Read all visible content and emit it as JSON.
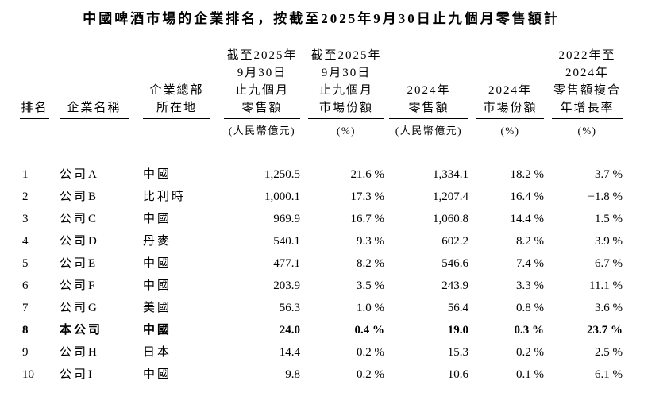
{
  "title": "中國啤酒市場的企業排名，按截至2025年9月30日止九個月零售額計",
  "table": {
    "columns": [
      {
        "id": "rank",
        "lines": [
          "排名"
        ],
        "unit": "",
        "align": "left"
      },
      {
        "id": "company-name",
        "lines": [
          "企業名稱"
        ],
        "unit": "",
        "align": "left"
      },
      {
        "id": "headquarters",
        "lines": [
          "企業總部",
          "所在地"
        ],
        "unit": "",
        "align": "left"
      },
      {
        "id": "retail-9m-2025",
        "lines": [
          "截至2025年",
          "9月30日",
          "止九個月",
          "零售額"
        ],
        "unit": "(人民幣億元)",
        "align": "right"
      },
      {
        "id": "market-share-9m-2025",
        "lines": [
          "截至2025年",
          "9月30日",
          "止九個月",
          "市場份額"
        ],
        "unit": "(%)",
        "align": "right"
      },
      {
        "id": "retail-2024",
        "lines": [
          "2024年",
          "零售額"
        ],
        "unit": "(人民幣億元)",
        "align": "right"
      },
      {
        "id": "market-share-2024",
        "lines": [
          "2024年",
          "市場份額"
        ],
        "unit": "(%)",
        "align": "right"
      },
      {
        "id": "cagr-2022-2024",
        "lines": [
          "2022年至",
          "2024年",
          "零售額複合",
          "年增長率"
        ],
        "unit": "(%)",
        "align": "right"
      }
    ],
    "rows": [
      {
        "bold": false,
        "cells": [
          "1",
          "公司A",
          "中國",
          "1,250.5",
          "21.6 %",
          "1,334.1",
          "18.2 %",
          "3.7 %"
        ]
      },
      {
        "bold": false,
        "cells": [
          "2",
          "公司B",
          "比利時",
          "1,000.1",
          "17.3 %",
          "1,207.4",
          "16.4 %",
          "−1.8 %"
        ]
      },
      {
        "bold": false,
        "cells": [
          "3",
          "公司C",
          "中國",
          "969.9",
          "16.7 %",
          "1,060.8",
          "14.4 %",
          "1.5 %"
        ]
      },
      {
        "bold": false,
        "cells": [
          "4",
          "公司D",
          "丹麥",
          "540.1",
          "9.3 %",
          "602.2",
          "8.2 %",
          "3.9 %"
        ]
      },
      {
        "bold": false,
        "cells": [
          "5",
          "公司E",
          "中國",
          "477.1",
          "8.2 %",
          "546.6",
          "7.4 %",
          "6.7 %"
        ]
      },
      {
        "bold": false,
        "cells": [
          "6",
          "公司F",
          "中國",
          "203.9",
          "3.5 %",
          "243.9",
          "3.3 %",
          "11.1 %"
        ]
      },
      {
        "bold": false,
        "cells": [
          "7",
          "公司G",
          "美國",
          "56.3",
          "1.0 %",
          "56.4",
          "0.8 %",
          "3.6 %"
        ]
      },
      {
        "bold": true,
        "cells": [
          "8",
          "本公司",
          "中國",
          "24.0",
          "0.4 %",
          "19.0",
          "0.3 %",
          "23.7 %"
        ]
      },
      {
        "bold": false,
        "cells": [
          "9",
          "公司H",
          "日本",
          "14.4",
          "0.2 %",
          "15.3",
          "0.2 %",
          "2.5 %"
        ]
      },
      {
        "bold": false,
        "cells": [
          "10",
          "公司I",
          "中國",
          "9.8",
          "0.2 %",
          "10.6",
          "0.1 %",
          "6.1 %"
        ]
      }
    ]
  }
}
